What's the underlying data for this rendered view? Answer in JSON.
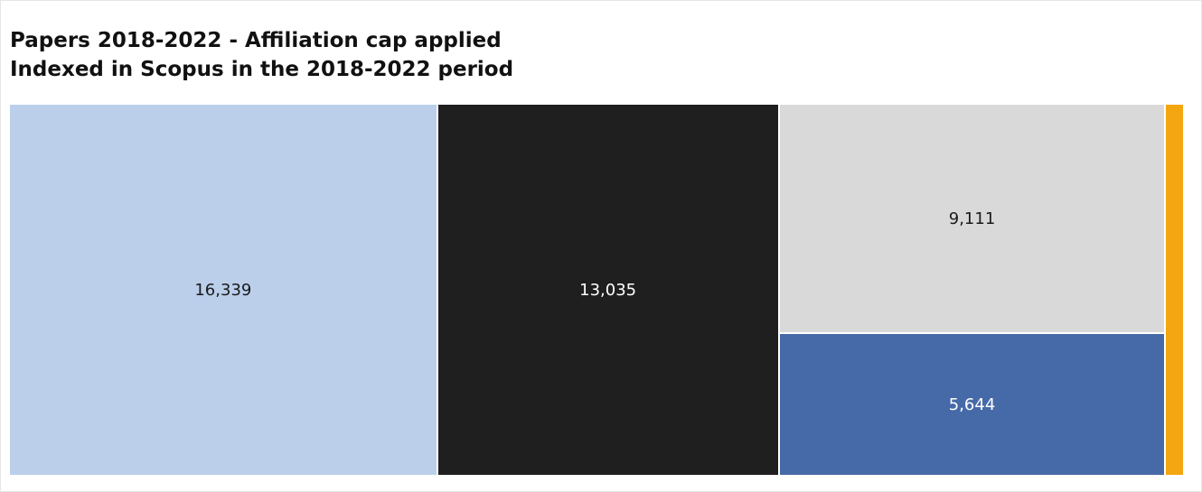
{
  "title_lines": [
    "Papers 2018-2022 - Affiliation cap applied",
    "Indexed in Scopus in the 2018-2022 period"
  ],
  "chart_data": {
    "type": "treemap",
    "title": "Papers 2018-2022 - Affiliation cap applied",
    "subtitle": "Indexed in Scopus in the 2018-2022 period",
    "items": [
      {
        "value": 16339,
        "label": "16,339",
        "color": "#bbcfeb",
        "text_color": "#1a1a1a"
      },
      {
        "value": 13035,
        "label": "13,035",
        "color": "#1f1f1f",
        "text_color": "#ffffff"
      },
      {
        "value": 9111,
        "label": "9,111",
        "color": "#d9d9d9",
        "text_color": "#1a1a1a"
      },
      {
        "value": 5644,
        "label": "5,644",
        "color": "#4669a8",
        "text_color": "#ffffff"
      },
      {
        "value": 710,
        "label": "",
        "color": "#f4a610",
        "text_color": "#1a1a1a"
      }
    ]
  }
}
